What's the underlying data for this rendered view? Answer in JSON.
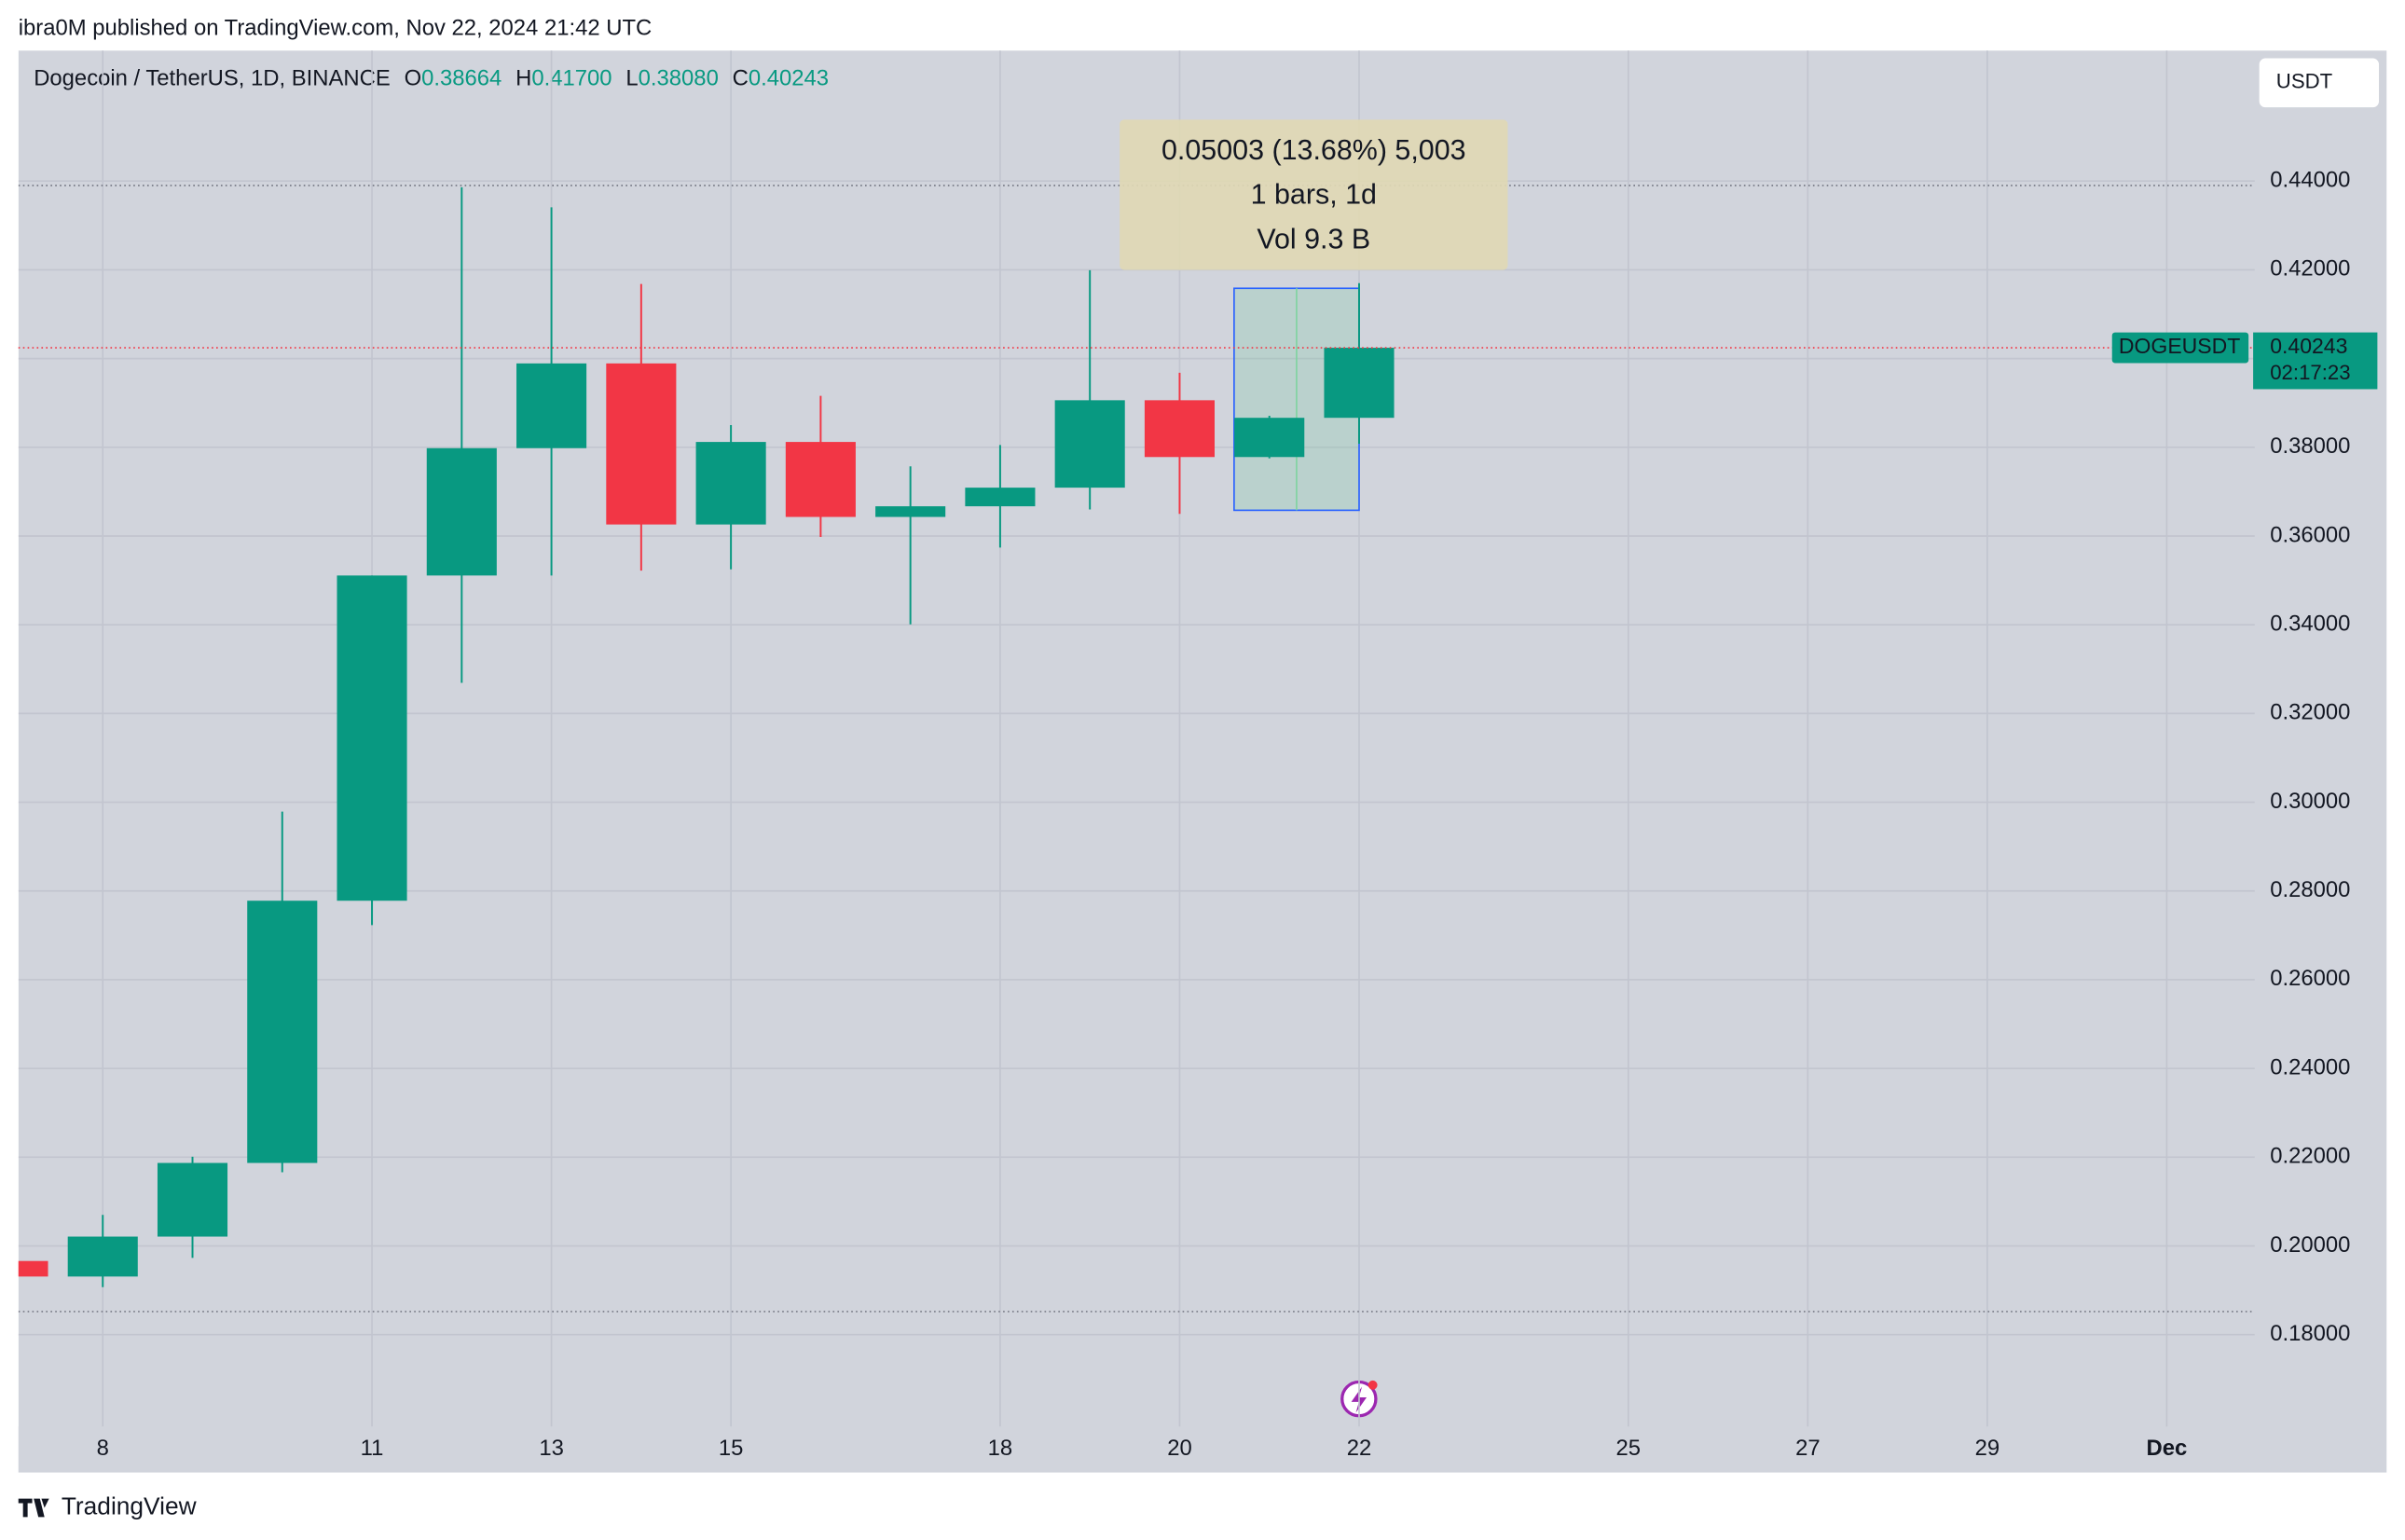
{
  "header": {
    "publisher": "ibra0M published on TradingView.com, Nov 22, 2024 21:42 UTC",
    "brand": "TradingView",
    "currency_button": "USDT"
  },
  "chart_data": {
    "type": "candlestick",
    "title": "Dogecoin / TetherUS, 1D, BINANCE",
    "legend_ohlc": [
      {
        "key": "O",
        "text": "0.38664"
      },
      {
        "key": "H",
        "text": "0.41700"
      },
      {
        "key": "L",
        "text": "0.38080"
      },
      {
        "key": "C",
        "text": "0.40243"
      }
    ],
    "x": [
      7,
      8,
      9,
      10,
      11,
      12,
      13,
      14,
      15,
      16,
      17,
      18,
      19,
      20,
      21,
      22
    ],
    "open": [
      0.1966,
      0.1931,
      0.2021,
      0.2187,
      0.2778,
      0.3511,
      0.3798,
      0.3989,
      0.3626,
      0.3812,
      0.3643,
      0.3667,
      0.3709,
      0.3906,
      0.3778,
      0.38664
    ],
    "high": [
      0.1966,
      0.207,
      0.2201,
      0.2979,
      0.3511,
      0.4386,
      0.4341,
      0.4168,
      0.385,
      0.3916,
      0.3757,
      0.3805,
      0.4199,
      0.3968,
      0.3871,
      0.417
    ],
    "low": [
      0.1931,
      0.1907,
      0.1973,
      0.2166,
      0.2723,
      0.3269,
      0.3511,
      0.3522,
      0.3525,
      0.3598,
      0.3401,
      0.3574,
      0.366,
      0.365,
      0.3775,
      0.3808
    ],
    "close": [
      0.1931,
      0.2021,
      0.2187,
      0.2778,
      0.3511,
      0.3798,
      0.3989,
      0.3626,
      0.3812,
      0.3643,
      0.3667,
      0.3709,
      0.3906,
      0.3778,
      0.38664,
      0.40243
    ],
    "up_color": "#089981",
    "down_color": "#f23645",
    "xlim": [
      7.06,
      31.98
    ],
    "xticks": [
      8,
      11,
      13,
      15,
      18,
      20,
      22,
      25,
      27,
      29,
      {
        "value": 31,
        "label": "Dec"
      }
    ],
    "ylim": [
      0.1593,
      0.4694
    ],
    "yticks": [
      {
        "value": 0.18,
        "label": "0.18000"
      },
      {
        "value": 0.2,
        "label": "0.20000"
      },
      {
        "value": 0.22,
        "label": "0.22000"
      },
      {
        "value": 0.24,
        "label": "0.24000"
      },
      {
        "value": 0.26,
        "label": "0.26000"
      },
      {
        "value": 0.28,
        "label": "0.28000"
      },
      {
        "value": 0.3,
        "label": "0.30000"
      },
      {
        "value": 0.32,
        "label": "0.32000"
      },
      {
        "value": 0.34,
        "label": "0.34000"
      },
      {
        "value": 0.36,
        "label": "0.36000"
      },
      {
        "value": 0.38,
        "label": "0.38000"
      },
      {
        "value": 0.4,
        "label": "0.40000"
      },
      {
        "value": 0.42,
        "label": "0.42000"
      },
      {
        "value": 0.44,
        "label": "0.44000"
      }
    ],
    "grid": true,
    "reference_lines": [
      0.439,
      0.1852
    ],
    "price_badge": {
      "symbol": "DOGEUSDT",
      "price": "0.40243",
      "countdown": "02:17:23"
    },
    "measure": {
      "x_from": 21,
      "x_to": 22,
      "from": 0.3658,
      "to": 0.41583,
      "lines": [
        "0.05003 (13.68%) 5,003",
        "1 bars, 1d",
        "Vol 9.3 B"
      ]
    }
  }
}
